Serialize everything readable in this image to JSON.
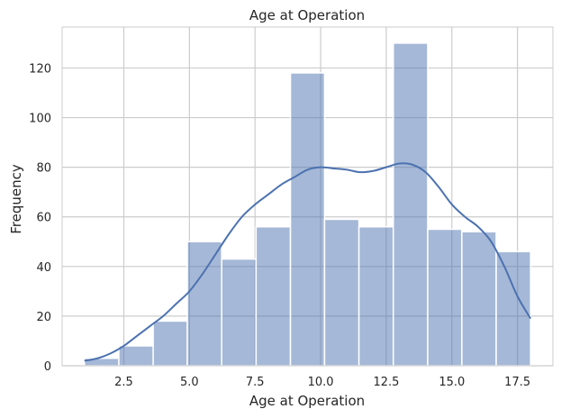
{
  "chart_data": {
    "type": "bar",
    "title": "Age at Operation",
    "xlabel": "Age at Operation",
    "ylabel": "Frequency",
    "xlim": [
      0.15,
      18.85
    ],
    "ylim": [
      0,
      136.5
    ],
    "x_ticks": [
      2.5,
      5.0,
      7.5,
      10.0,
      12.5,
      15.0,
      17.5
    ],
    "x_tick_labels": [
      "2.5",
      "5.0",
      "7.5",
      "10.0",
      "12.5",
      "15.0",
      "17.5"
    ],
    "y_ticks": [
      0,
      20,
      40,
      60,
      80,
      100,
      120
    ],
    "y_tick_labels": [
      "0",
      "20",
      "40",
      "60",
      "80",
      "100",
      "120"
    ],
    "grid": true,
    "bin_edges": [
      1.0,
      2.31,
      3.62,
      4.92,
      6.23,
      7.54,
      8.85,
      10.15,
      11.46,
      12.77,
      14.08,
      15.38,
      16.69,
      18.0
    ],
    "values": [
      3,
      8,
      18,
      50,
      43,
      56,
      118,
      59,
      56,
      130,
      55,
      54,
      46
    ],
    "kde_x": [
      1.0,
      1.5,
      2.0,
      2.5,
      3.0,
      3.5,
      4.0,
      4.5,
      5.0,
      5.5,
      6.0,
      6.5,
      7.0,
      7.5,
      8.0,
      8.5,
      9.0,
      9.5,
      10.0,
      10.5,
      11.0,
      11.5,
      12.0,
      12.5,
      13.0,
      13.5,
      14.0,
      14.5,
      15.0,
      15.5,
      16.0,
      16.5,
      17.0,
      17.5,
      18.0
    ],
    "kde_y": [
      2,
      3,
      5,
      8,
      12,
      16,
      20,
      25,
      30,
      37,
      45,
      53,
      60,
      65,
      69,
      73,
      76,
      79,
      80,
      79.5,
      79,
      78,
      78.5,
      80,
      81.5,
      81,
      78,
      72,
      65,
      60,
      56,
      50,
      40,
      28,
      19
    ],
    "colors": {
      "bar_fill": "#4c72b0",
      "bar_fill_opacity": 0.5,
      "bar_edge": "#ffffff",
      "kde_line": "#4c72b0",
      "grid": "#cccccc",
      "frame": "#cccccc"
    }
  }
}
